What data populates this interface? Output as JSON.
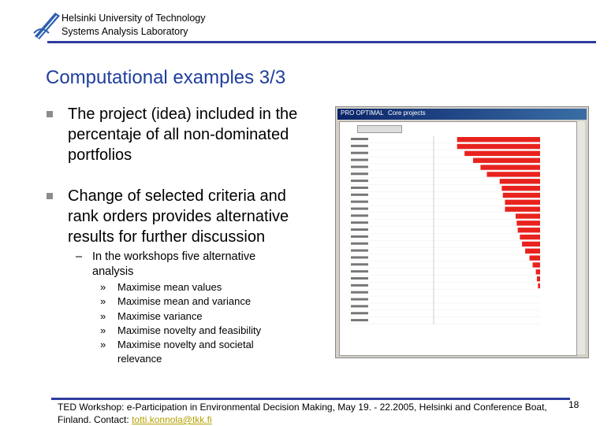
{
  "header": {
    "line1": "Helsinki University of Technology",
    "line2": "Systems Analysis Laboratory"
  },
  "title": "Computational examples 3/3",
  "bullets": [
    "The project (idea) included in the percentaje of all non-dominated portfolios",
    "Change of selected criteria and rank orders provides alternative results for further discussion"
  ],
  "sub_bullet": {
    "marker": "–",
    "text": "In the workshops five alternative analysis"
  },
  "sub_items": {
    "marker": "»",
    "items": [
      "Maximise mean values",
      "Maximise mean and variance",
      "Maximise variance",
      "Maximise novelty and feasibility",
      "Maximise novelty and societal relevance"
    ]
  },
  "screenshot": {
    "window_title": "PRO OPTIMAL",
    "window_subtitle": "Core projects",
    "bars": {
      "values": [
        78,
        78,
        71,
        63,
        56,
        50,
        38,
        36,
        35,
        33,
        33,
        23,
        22,
        21,
        19,
        17,
        14,
        10,
        7,
        4,
        3,
        2,
        0,
        0,
        0,
        0,
        0
      ],
      "xlim": [
        0,
        100
      ],
      "color": "#e8221e"
    }
  },
  "footer": {
    "text": "TED Workshop: e-Participation in Environmental Decision Making, May 19. - 22.2005, Helsinki and Conference Boat, Finland. Contact: ",
    "contact": "totti.konnola@tkk.fi",
    "page": "18"
  }
}
